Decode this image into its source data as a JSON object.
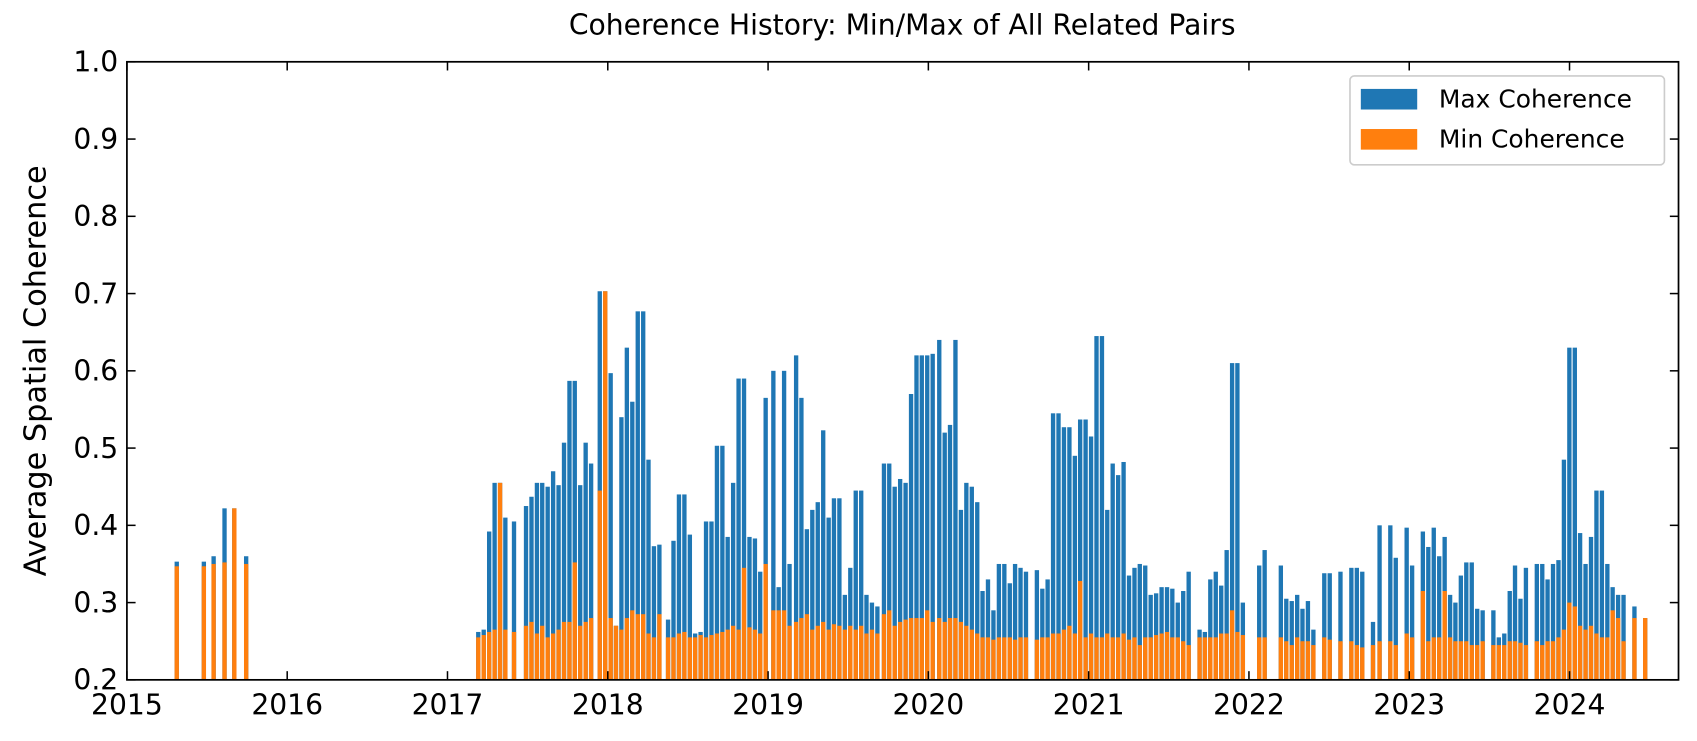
{
  "chart_data": {
    "type": "bar",
    "title": "Coherence History: Min/Max of All Related Pairs",
    "y_label": "Average Spatial Coherence",
    "x": [
      2015.311,
      2015.48,
      2015.541,
      2015.609,
      2015.67,
      2015.744,
      2017.192,
      2017.226,
      2017.26,
      2017.294,
      2017.328,
      2017.361,
      2017.415,
      2017.49,
      2017.524,
      2017.558,
      2017.591,
      2017.625,
      2017.659,
      2017.693,
      2017.727,
      2017.761,
      2017.794,
      2017.828,
      2017.862,
      2017.896,
      2017.95,
      2017.984,
      2018.018,
      2018.051,
      2018.085,
      2018.119,
      2018.153,
      2018.187,
      2018.221,
      2018.254,
      2018.288,
      2018.322,
      2018.376,
      2018.41,
      2018.444,
      2018.478,
      2018.512,
      2018.545,
      2018.579,
      2018.613,
      2018.647,
      2018.681,
      2018.715,
      2018.748,
      2018.782,
      2018.816,
      2018.85,
      2018.884,
      2018.918,
      2018.951,
      2018.985,
      2019.033,
      2019.066,
      2019.1,
      2019.134,
      2019.175,
      2019.208,
      2019.242,
      2019.276,
      2019.31,
      2019.344,
      2019.378,
      2019.411,
      2019.445,
      2019.479,
      2019.513,
      2019.547,
      2019.581,
      2019.614,
      2019.648,
      2019.682,
      2019.723,
      2019.756,
      2019.79,
      2019.824,
      2019.858,
      2019.892,
      2019.926,
      2019.959,
      2019.993,
      2020.027,
      2020.068,
      2020.102,
      2020.135,
      2020.169,
      2020.203,
      2020.237,
      2020.271,
      2020.305,
      2020.338,
      2020.372,
      2020.406,
      2020.44,
      2020.474,
      2020.508,
      2020.541,
      2020.575,
      2020.609,
      2020.677,
      2020.711,
      2020.744,
      2020.778,
      2020.812,
      2020.846,
      2020.88,
      2020.914,
      2020.947,
      2020.981,
      2021.015,
      2021.049,
      2021.083,
      2021.116,
      2021.15,
      2021.184,
      2021.218,
      2021.252,
      2021.286,
      2021.319,
      2021.353,
      2021.387,
      2021.421,
      2021.455,
      2021.489,
      2021.522,
      2021.556,
      2021.59,
      2021.624,
      2021.692,
      2021.725,
      2021.759,
      2021.793,
      2021.827,
      2021.861,
      2021.895,
      2021.928,
      2021.962,
      2022.064,
      2022.098,
      2022.199,
      2022.233,
      2022.267,
      2022.301,
      2022.334,
      2022.368,
      2022.402,
      2022.47,
      2022.504,
      2022.571,
      2022.639,
      2022.673,
      2022.707,
      2022.774,
      2022.815,
      2022.882,
      2022.916,
      2022.984,
      2023.018,
      2023.085,
      2023.119,
      2023.153,
      2023.187,
      2023.221,
      2023.255,
      2023.288,
      2023.322,
      2023.356,
      2023.39,
      2023.424,
      2023.458,
      2023.525,
      2023.559,
      2023.593,
      2023.627,
      2023.66,
      2023.694,
      2023.728,
      2023.796,
      2023.83,
      2023.863,
      2023.897,
      2023.931,
      2023.965,
      2023.999,
      2024.033,
      2024.066,
      2024.1,
      2024.134,
      2024.168,
      2024.202,
      2024.236,
      2024.269,
      2024.303,
      2024.337,
      2024.405,
      2024.472
    ],
    "series": [
      {
        "name": "Max Coherence",
        "color": "#1f77b4",
        "values": [
          0.353,
          0.353,
          0.36,
          0.422,
          0.422,
          0.36,
          0.262,
          0.265,
          0.392,
          0.455,
          0.455,
          0.41,
          0.405,
          0.425,
          0.437,
          0.455,
          0.455,
          0.45,
          0.47,
          0.452,
          0.507,
          0.587,
          0.587,
          0.452,
          0.507,
          0.48,
          0.703,
          0.703,
          0.597,
          0.27,
          0.54,
          0.63,
          0.56,
          0.677,
          0.677,
          0.485,
          0.373,
          0.375,
          0.278,
          0.38,
          0.44,
          0.44,
          0.388,
          0.26,
          0.262,
          0.405,
          0.405,
          0.503,
          0.503,
          0.385,
          0.455,
          0.59,
          0.59,
          0.385,
          0.383,
          0.34,
          0.565,
          0.6,
          0.32,
          0.6,
          0.35,
          0.62,
          0.565,
          0.395,
          0.42,
          0.43,
          0.523,
          0.41,
          0.435,
          0.435,
          0.31,
          0.345,
          0.445,
          0.445,
          0.31,
          0.3,
          0.295,
          0.48,
          0.48,
          0.45,
          0.46,
          0.455,
          0.57,
          0.62,
          0.62,
          0.62,
          0.622,
          0.64,
          0.52,
          0.53,
          0.64,
          0.42,
          0.455,
          0.45,
          0.43,
          0.315,
          0.33,
          0.29,
          0.35,
          0.35,
          0.325,
          0.35,
          0.345,
          0.34,
          0.342,
          0.318,
          0.33,
          0.545,
          0.545,
          0.527,
          0.527,
          0.49,
          0.537,
          0.537,
          0.515,
          0.645,
          0.645,
          0.42,
          0.48,
          0.465,
          0.482,
          0.335,
          0.345,
          0.35,
          0.348,
          0.31,
          0.312,
          0.32,
          0.32,
          0.318,
          0.3,
          0.315,
          0.34,
          0.265,
          0.262,
          0.33,
          0.34,
          0.322,
          0.368,
          0.61,
          0.61,
          0.3,
          0.348,
          0.368,
          0.348,
          0.305,
          0.302,
          0.31,
          0.292,
          0.302,
          0.265,
          0.338,
          0.338,
          0.34,
          0.345,
          0.345,
          0.34,
          0.275,
          0.4,
          0.4,
          0.358,
          0.397,
          0.348,
          0.392,
          0.372,
          0.397,
          0.36,
          0.385,
          0.31,
          0.3,
          0.335,
          0.352,
          0.352,
          0.292,
          0.29,
          0.29,
          0.255,
          0.26,
          0.315,
          0.348,
          0.305,
          0.345,
          0.35,
          0.35,
          0.33,
          0.35,
          0.355,
          0.485,
          0.63,
          0.63,
          0.39,
          0.35,
          0.385,
          0.445,
          0.445,
          0.35,
          0.32,
          0.31,
          0.31,
          0.295,
          0.28
        ]
      },
      {
        "name": "Min Coherence",
        "color": "#ff7f0e",
        "values": [
          0.347,
          0.347,
          0.35,
          0.352,
          0.422,
          0.35,
          0.255,
          0.258,
          0.262,
          0.265,
          0.455,
          0.265,
          0.262,
          0.27,
          0.275,
          0.26,
          0.27,
          0.255,
          0.26,
          0.265,
          0.275,
          0.275,
          0.352,
          0.27,
          0.275,
          0.28,
          0.445,
          0.703,
          0.28,
          0.27,
          0.265,
          0.28,
          0.29,
          0.285,
          0.285,
          0.26,
          0.255,
          0.285,
          0.255,
          0.255,
          0.26,
          0.262,
          0.255,
          0.255,
          0.258,
          0.255,
          0.258,
          0.26,
          0.262,
          0.265,
          0.27,
          0.265,
          0.345,
          0.268,
          0.265,
          0.26,
          0.35,
          0.29,
          0.29,
          0.29,
          0.27,
          0.275,
          0.28,
          0.285,
          0.265,
          0.27,
          0.275,
          0.265,
          0.272,
          0.27,
          0.265,
          0.27,
          0.265,
          0.27,
          0.26,
          0.265,
          0.26,
          0.285,
          0.29,
          0.27,
          0.275,
          0.278,
          0.28,
          0.28,
          0.28,
          0.29,
          0.275,
          0.28,
          0.275,
          0.28,
          0.28,
          0.275,
          0.27,
          0.265,
          0.26,
          0.255,
          0.255,
          0.252,
          0.255,
          0.255,
          0.255,
          0.252,
          0.255,
          0.255,
          0.252,
          0.255,
          0.255,
          0.26,
          0.26,
          0.265,
          0.27,
          0.26,
          0.328,
          0.255,
          0.26,
          0.255,
          0.255,
          0.26,
          0.255,
          0.255,
          0.26,
          0.252,
          0.255,
          0.245,
          0.255,
          0.255,
          0.258,
          0.26,
          0.262,
          0.255,
          0.255,
          0.25,
          0.245,
          0.255,
          0.255,
          0.255,
          0.255,
          0.26,
          0.26,
          0.29,
          0.262,
          0.258,
          0.255,
          0.255,
          0.255,
          0.25,
          0.245,
          0.255,
          0.25,
          0.25,
          0.245,
          0.255,
          0.252,
          0.25,
          0.25,
          0.245,
          0.242,
          0.245,
          0.25,
          0.25,
          0.245,
          0.26,
          0.255,
          0.315,
          0.25,
          0.255,
          0.255,
          0.315,
          0.255,
          0.25,
          0.25,
          0.25,
          0.245,
          0.245,
          0.25,
          0.245,
          0.245,
          0.245,
          0.25,
          0.25,
          0.248,
          0.245,
          0.25,
          0.245,
          0.25,
          0.25,
          0.255,
          0.265,
          0.3,
          0.295,
          0.27,
          0.265,
          0.27,
          0.26,
          0.255,
          0.255,
          0.29,
          0.28,
          0.25,
          0.28,
          0.28
        ]
      }
    ],
    "xlim": [
      2015,
      2024.68
    ],
    "xticks": [
      2015,
      2016,
      2017,
      2018,
      2019,
      2020,
      2021,
      2022,
      2023,
      2024
    ],
    "ylim": [
      0.2,
      1
    ],
    "yticks": [
      0.2,
      0.3,
      0.4,
      0.5,
      0.6,
      0.7,
      0.8,
      0.9,
      {
        "value": 1,
        "label": "1.0"
      }
    ],
    "legend": "upper right",
    "grid": false
  }
}
